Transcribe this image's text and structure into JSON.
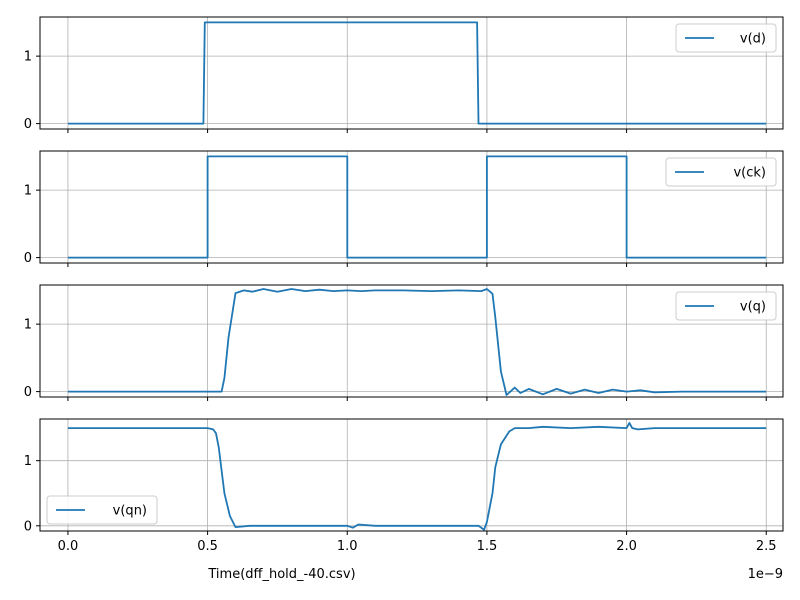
{
  "chart_data": {
    "type": "line",
    "xlabel": "Time(dff_hold_-40.csv)",
    "x_offset_label": "1e−9",
    "x_ticks": [
      0.0,
      0.5,
      1.0,
      1.5,
      2.0,
      2.5
    ],
    "x_tick_labels": [
      "0.0",
      "0.5",
      "1.0",
      "1.5",
      "2.0",
      "2.5"
    ],
    "xlim": [
      -0.1,
      2.56
    ],
    "grid": true,
    "color": "#1f77b4",
    "panels": [
      {
        "series": [
          {
            "name": "v(d)",
            "x": [
              0.0,
              0.485,
              0.49,
              1.465,
              1.47,
              2.5
            ],
            "y": [
              0,
              0,
              1.5,
              1.5,
              0,
              0
            ]
          }
        ],
        "legend": "top-right",
        "ylim": [
          -0.08,
          1.58
        ],
        "yticks": [
          0,
          1
        ],
        "ytick_labels": [
          "0",
          "1"
        ]
      },
      {
        "series": [
          {
            "name": "v(ck)",
            "x": [
              0.0,
              0.5,
              0.5,
              1.0,
              1.0,
              1.5,
              1.5,
              2.0,
              2.0,
              2.5
            ],
            "y": [
              0,
              0,
              1.5,
              1.5,
              0,
              0,
              1.5,
              1.5,
              0,
              0
            ]
          }
        ],
        "legend": "top-right",
        "ylim": [
          -0.08,
          1.58
        ],
        "yticks": [
          0,
          1
        ],
        "ytick_labels": [
          "0",
          "1"
        ]
      },
      {
        "series": [
          {
            "name": "v(q)",
            "x": [
              0.0,
              0.55,
              0.56,
              0.575,
              0.6,
              0.63,
              0.66,
              0.7,
              0.75,
              0.8,
              0.85,
              0.9,
              0.95,
              1.0,
              1.05,
              1.1,
              1.2,
              1.3,
              1.4,
              1.48,
              1.5,
              1.52,
              1.53,
              1.55,
              1.57,
              1.6,
              1.62,
              1.65,
              1.7,
              1.75,
              1.8,
              1.85,
              1.9,
              1.95,
              2.0,
              2.05,
              2.1,
              2.2,
              2.3,
              2.4,
              2.5
            ],
            "y": [
              0,
              0,
              0.2,
              0.8,
              1.46,
              1.5,
              1.48,
              1.52,
              1.48,
              1.52,
              1.49,
              1.51,
              1.49,
              1.5,
              1.49,
              1.5,
              1.5,
              1.49,
              1.5,
              1.49,
              1.52,
              1.45,
              1.1,
              0.3,
              -0.05,
              0.06,
              -0.02,
              0.04,
              -0.04,
              0.04,
              -0.03,
              0.03,
              -0.02,
              0.03,
              0.0,
              0.02,
              -0.01,
              0.0,
              0.0,
              0.0,
              0.0
            ]
          }
        ],
        "legend": "top-right",
        "ylim": [
          -0.08,
          1.58
        ],
        "yticks": [
          0,
          1
        ],
        "ytick_labels": [
          "0",
          "1"
        ]
      },
      {
        "series": [
          {
            "name": "v(qn)",
            "x": [
              0.0,
              0.45,
              0.5,
              0.52,
              0.53,
              0.54,
              0.56,
              0.58,
              0.6,
              0.65,
              0.7,
              0.8,
              0.9,
              1.0,
              1.02,
              1.04,
              1.1,
              1.2,
              1.3,
              1.4,
              1.47,
              1.49,
              1.5,
              1.52,
              1.53,
              1.55,
              1.58,
              1.6,
              1.65,
              1.7,
              1.8,
              1.9,
              2.0,
              2.01,
              2.02,
              2.04,
              2.1,
              2.2,
              2.3,
              2.4,
              2.5
            ],
            "y": [
              1.5,
              1.5,
              1.5,
              1.48,
              1.42,
              1.2,
              0.5,
              0.15,
              -0.02,
              0.0,
              0.0,
              0.0,
              0.0,
              0.0,
              -0.03,
              0.02,
              0.0,
              0.0,
              0.0,
              0.0,
              0.0,
              -0.06,
              0.06,
              0.5,
              0.9,
              1.25,
              1.45,
              1.5,
              1.5,
              1.52,
              1.5,
              1.52,
              1.5,
              1.58,
              1.5,
              1.48,
              1.5,
              1.5,
              1.5,
              1.5,
              1.5
            ]
          }
        ],
        "legend": "bottom-left",
        "ylim": [
          -0.08,
          1.64
        ],
        "yticks": [
          0,
          1
        ],
        "ytick_labels": [
          "0",
          "1"
        ]
      }
    ]
  }
}
